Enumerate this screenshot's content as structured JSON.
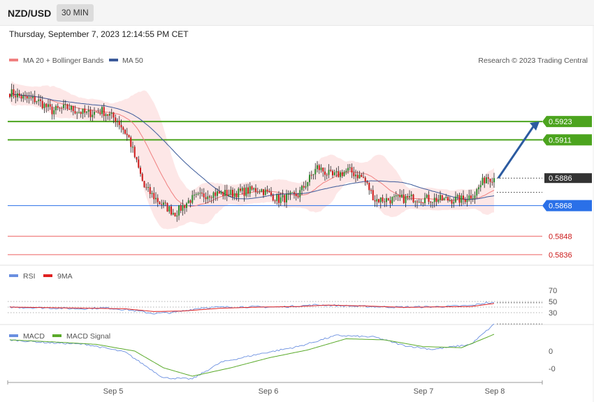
{
  "header": {
    "symbol": "NZD/USD",
    "timeframe": "30 MIN",
    "datetime": "Thursday, September 7, 2023 12:14:55 PM CET"
  },
  "legend": {
    "ma20_label": "MA 20 + Bollinger Bands",
    "ma50_label": "MA 50",
    "credit": "Research © 2023 Trading Central"
  },
  "colors": {
    "resistance": "#4ca41e",
    "support": "#2a70e8",
    "target_support": "#f08080",
    "last_price": "#333333",
    "bullish_candle": "#2e8b2e",
    "bearish_candle": "#cc1a1a",
    "ma20": "#f08080",
    "ma50": "#3b5a9a",
    "bollinger_fill": "#fde3e3",
    "arrow": "#2b5aa0",
    "rsi": "#6a8fe0",
    "rsi_ma": "#e02020",
    "macd": "#6a8fe0",
    "macd_signal": "#5aaa2a"
  },
  "levels": [
    {
      "value": "0.5923",
      "kind": "resistance"
    },
    {
      "value": "0.5911",
      "kind": "resistance"
    },
    {
      "value": "0.5886",
      "kind": "last_price"
    },
    {
      "value": "0.5868",
      "kind": "support"
    },
    {
      "value": "0.5848",
      "kind": "target_support"
    },
    {
      "value": "0.5836",
      "kind": "target_support"
    }
  ],
  "rsi_panel": {
    "legend": [
      "RSI",
      "9MA"
    ],
    "ticks": [
      "70",
      "50",
      "30"
    ]
  },
  "macd_panel": {
    "legend": [
      "MACD",
      "MACD Signal"
    ],
    "ticks": [
      "0",
      "-0"
    ]
  },
  "x_axis": {
    "ticks": [
      "Sep 5",
      "Sep 6",
      "Sep 7",
      "Sep 8"
    ]
  },
  "chart_data": {
    "type": "candlestick",
    "symbol": "NZD/USD",
    "timeframe": "30 MIN",
    "price_range": [
      0.583,
      0.597
    ],
    "close_series_waypoints": [
      [
        0,
        0.5942
      ],
      [
        8,
        0.5938
      ],
      [
        14,
        0.5937
      ],
      [
        22,
        0.593
      ],
      [
        30,
        0.5932
      ],
      [
        40,
        0.5928
      ],
      [
        48,
        0.593
      ],
      [
        56,
        0.5924
      ],
      [
        62,
        0.5912
      ],
      [
        70,
        0.588
      ],
      [
        78,
        0.587
      ],
      [
        86,
        0.5863
      ],
      [
        94,
        0.5872
      ],
      [
        104,
        0.5876
      ],
      [
        116,
        0.5876
      ],
      [
        130,
        0.5879
      ],
      [
        140,
        0.5872
      ],
      [
        150,
        0.5875
      ],
      [
        160,
        0.5893
      ],
      [
        168,
        0.5887
      ],
      [
        176,
        0.5891
      ],
      [
        184,
        0.5886
      ],
      [
        190,
        0.5872
      ],
      [
        198,
        0.5872
      ],
      [
        210,
        0.5873
      ],
      [
        222,
        0.5872
      ],
      [
        236,
        0.5872
      ],
      [
        242,
        0.5876
      ],
      [
        248,
        0.5887
      ],
      [
        252,
        0.5886
      ]
    ],
    "levels": {
      "resistance": [
        0.5923,
        0.5911
      ],
      "last_price": 0.5886,
      "support": [
        0.5868
      ],
      "targets": [
        0.5848,
        0.5836
      ]
    },
    "forecast_arrow": {
      "from": 0.5886,
      "to": 0.5923
    },
    "indicators": {
      "rsi_levels": [
        70,
        50,
        30
      ],
      "rsi_waypoints": [
        [
          0,
          50
        ],
        [
          20,
          47
        ],
        [
          35,
          44
        ],
        [
          50,
          47
        ],
        [
          62,
          40
        ],
        [
          75,
          27
        ],
        [
          86,
          31
        ],
        [
          100,
          48
        ],
        [
          120,
          51
        ],
        [
          140,
          50
        ],
        [
          160,
          58
        ],
        [
          180,
          53
        ],
        [
          200,
          50
        ],
        [
          220,
          51
        ],
        [
          240,
          55
        ],
        [
          248,
          66
        ],
        [
          252,
          64
        ]
      ],
      "rsi_ma_waypoints": [
        [
          0,
          50
        ],
        [
          20,
          48
        ],
        [
          40,
          46
        ],
        [
          60,
          44
        ],
        [
          75,
          34
        ],
        [
          90,
          36
        ],
        [
          110,
          46
        ],
        [
          130,
          50
        ],
        [
          150,
          52
        ],
        [
          165,
          57
        ],
        [
          185,
          54
        ],
        [
          205,
          49
        ],
        [
          225,
          51
        ],
        [
          240,
          52
        ],
        [
          252,
          63
        ]
      ],
      "macd_waypoints": [
        [
          0,
          0.0002
        ],
        [
          20,
          0.00015
        ],
        [
          40,
          0.00012
        ],
        [
          60,
          -2e-05
        ],
        [
          80,
          -0.00048
        ],
        [
          95,
          -0.0005
        ],
        [
          110,
          -0.0002
        ],
        [
          130,
          -5e-05
        ],
        [
          150,
          8e-05
        ],
        [
          170,
          0.00028
        ],
        [
          190,
          0.00025
        ],
        [
          205,
          0.0001
        ],
        [
          220,
          3e-05
        ],
        [
          240,
          0.00012
        ],
        [
          252,
          0.00048
        ]
      ],
      "macd_signal_waypoints": [
        [
          0,
          0.0002
        ],
        [
          25,
          0.00016
        ],
        [
          45,
          0.00012
        ],
        [
          65,
          0.0
        ],
        [
          80,
          -0.0003
        ],
        [
          95,
          -0.00045
        ],
        [
          115,
          -0.0003
        ],
        [
          135,
          -0.00012
        ],
        [
          155,
          2e-05
        ],
        [
          175,
          0.00022
        ],
        [
          195,
          0.0002
        ],
        [
          215,
          8e-05
        ],
        [
          235,
          6e-05
        ],
        [
          245,
          0.0002
        ],
        [
          252,
          0.0003
        ]
      ]
    }
  }
}
